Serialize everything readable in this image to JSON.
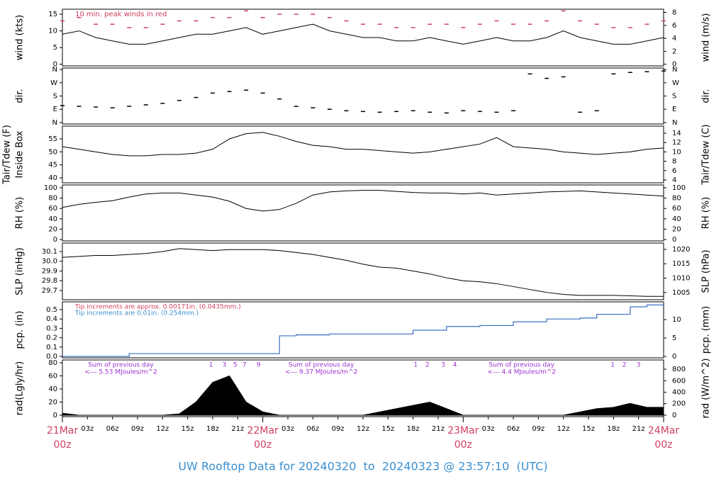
{
  "title": "UW Rooftop Data for 20240320  to  20240323 @ 23:57:10  (UTC)",
  "x": [
    0,
    2,
    4,
    6,
    8,
    10,
    12,
    14,
    16,
    18,
    20,
    22,
    24,
    26,
    28,
    30,
    32,
    34,
    36,
    38,
    40,
    42,
    44,
    46,
    48,
    50,
    52,
    54,
    56,
    58,
    60,
    62,
    64,
    66,
    68,
    70,
    72
  ],
  "xlim": [
    0,
    72
  ],
  "xticks": [
    {
      "value": 3,
      "label": "03z"
    },
    {
      "value": 6,
      "label": "06z"
    },
    {
      "value": 9,
      "label": "09z"
    },
    {
      "value": 12,
      "label": "12z"
    },
    {
      "value": 15,
      "label": "15z"
    },
    {
      "value": 18,
      "label": "18z"
    },
    {
      "value": 21,
      "label": "21z"
    },
    {
      "value": 27,
      "label": "03z"
    },
    {
      "value": 30,
      "label": "06z"
    },
    {
      "value": 33,
      "label": "09z"
    },
    {
      "value": 36,
      "label": "12z"
    },
    {
      "value": 39,
      "label": "15z"
    },
    {
      "value": 42,
      "label": "18z"
    },
    {
      "value": 45,
      "label": "21z"
    },
    {
      "value": 51,
      "label": "03z"
    },
    {
      "value": 54,
      "label": "06z"
    },
    {
      "value": 57,
      "label": "09z"
    },
    {
      "value": 60,
      "label": "12z"
    },
    {
      "value": 63,
      "label": "15z"
    },
    {
      "value": 66,
      "label": "18z"
    },
    {
      "value": 69,
      "label": "21z"
    }
  ],
  "day_ticks": [
    {
      "value": 0,
      "label": "21Mar"
    },
    {
      "value": 24,
      "label": "22Mar"
    },
    {
      "value": 48,
      "label": "23Mar"
    },
    {
      "value": 72,
      "label": "24Mar"
    }
  ],
  "day_hour_label": "00z",
  "chart_data": [
    {
      "type": "line",
      "ylabel": "wind (kts)",
      "y2label": "wind (m/s)",
      "annotation": "10 min. peak winds in red",
      "annotation_color": "#d04060",
      "ylim": [
        -0.5,
        16.5
      ],
      "yticks": [
        0,
        5,
        10,
        15
      ],
      "y2lim": [
        -0.26,
        8.49
      ],
      "y2ticks": [
        0,
        2,
        4,
        6,
        8
      ],
      "series": [
        {
          "color": "#000000",
          "values": [
            9,
            10,
            8,
            7,
            6,
            6,
            7,
            8,
            9,
            9,
            10,
            11,
            9,
            10,
            11,
            12,
            10,
            9,
            8,
            8,
            7,
            7,
            8,
            7,
            6,
            7,
            8,
            7,
            7,
            8,
            10,
            8,
            7,
            6,
            6,
            7,
            8
          ]
        },
        {
          "color": "#d04060",
          "style": "dash",
          "values": [
            13,
            14,
            12,
            12,
            11,
            11,
            12,
            13,
            13,
            14,
            14,
            16,
            14,
            15,
            15,
            15,
            14,
            13,
            12,
            12,
            11,
            11,
            12,
            12,
            11,
            12,
            13,
            12,
            12,
            13,
            16,
            13,
            12,
            11,
            11,
            12,
            13
          ]
        }
      ]
    },
    {
      "type": "scatter",
      "ylabel": "dir.",
      "y2label": "dir.",
      "ylim": [
        -10,
        370
      ],
      "yticks": [
        {
          "value": 0,
          "label": "N"
        },
        {
          "value": 90,
          "label": "E"
        },
        {
          "value": 180,
          "label": "S"
        },
        {
          "value": 270,
          "label": "W"
        },
        {
          "value": 360,
          "label": "N"
        }
      ],
      "y2lim": [
        -10,
        370
      ],
      "y2ticks": [
        {
          "value": 0,
          "label": "N"
        },
        {
          "value": 90,
          "label": "E"
        },
        {
          "value": 180,
          "label": "S"
        },
        {
          "value": 270,
          "label": "W"
        },
        {
          "value": 360,
          "label": "N"
        }
      ],
      "series": [
        {
          "color": "#000000",
          "values": [
            115,
            110,
            105,
            100,
            110,
            120,
            130,
            150,
            170,
            200,
            210,
            220,
            200,
            160,
            110,
            100,
            90,
            80,
            75,
            70,
            75,
            80,
            70,
            65,
            80,
            75,
            70,
            80,
            330,
            300,
            310,
            70,
            80,
            330,
            340,
            345,
            350
          ]
        }
      ]
    },
    {
      "type": "line",
      "ylabel": "Tair/Tdew (F)",
      "ylabel2": "Inside Box",
      "y2label": "Tair/Tdew (C)",
      "ylim": [
        38.1,
        59.9
      ],
      "yticks": [
        40,
        45,
        50,
        55
      ],
      "y2lim": [
        3.39,
        15.5
      ],
      "y2ticks": [
        4,
        6,
        8,
        10,
        12,
        14
      ],
      "series": [
        {
          "color": "#000000",
          "values": [
            52,
            51,
            50,
            49,
            48.5,
            48.5,
            49,
            49,
            49.5,
            51,
            55,
            57,
            57.5,
            56,
            54,
            52.5,
            52,
            51,
            51,
            50.5,
            50,
            49.5,
            50,
            51,
            52,
            53,
            55.5,
            52,
            51.5,
            51,
            50,
            49.5,
            49,
            49.5,
            50,
            51,
            51.5
          ]
        }
      ]
    },
    {
      "type": "line",
      "ylabel": "RH (%)",
      "y2label": "RH (%)",
      "ylim": [
        -2.7,
        105.5
      ],
      "yticks": [
        0,
        20,
        40,
        60,
        80,
        100
      ],
      "y2lim": [
        -2.7,
        105.5
      ],
      "y2ticks": [
        0,
        20,
        40,
        60,
        80,
        100
      ],
      "series": [
        {
          "color": "#000000",
          "values": [
            62,
            68,
            72,
            75,
            82,
            88,
            90,
            90,
            86,
            82,
            74,
            60,
            55,
            58,
            70,
            86,
            92,
            94,
            95,
            95,
            93,
            91,
            90,
            90,
            88,
            90,
            86,
            88,
            90,
            92,
            93,
            94,
            92,
            90,
            88,
            86,
            84
          ]
        }
      ]
    },
    {
      "type": "line",
      "ylabel": "SLP (inHg)",
      "y2label": "SLP (hPa)",
      "ylim": [
        29.605,
        30.187
      ],
      "yticks": [
        29.7,
        29.8,
        29.9,
        {
          "value": 30.0,
          "label": "30.0"
        },
        30.1
      ],
      "y2lim": [
        1002.5,
        1022.2
      ],
      "y2ticks": [
        1005,
        1010,
        1015,
        1020
      ],
      "series": [
        {
          "color": "#000000",
          "values": [
            30.04,
            30.05,
            30.06,
            30.06,
            30.07,
            30.08,
            30.1,
            30.13,
            30.12,
            30.11,
            30.12,
            30.12,
            30.12,
            30.11,
            30.09,
            30.07,
            30.04,
            30.01,
            29.97,
            29.94,
            29.93,
            29.9,
            29.87,
            29.83,
            29.8,
            29.79,
            29.77,
            29.74,
            29.71,
            29.68,
            29.66,
            29.65,
            29.65,
            29.65,
            29.645,
            29.64,
            29.64
          ]
        }
      ]
    },
    {
      "type": "step",
      "ylabel": "pcp. (in)",
      "y2label": "pcp. (mm)",
      "annotations": [
        {
          "text": "Tip increments are approx. 0.00171in. (0.0435mm.)",
          "color": "#d04060"
        },
        {
          "text": "Tip increments are 0.01in. (0.254mm.)",
          "color": "#3a8fd0"
        }
      ],
      "ylim": [
        -0.015,
        0.583
      ],
      "yticks": [
        {
          "value": 0,
          "label": "0.0"
        },
        0.1,
        0.2,
        0.3,
        0.4,
        0.5
      ],
      "y2lim": [
        -0.38,
        14.81
      ],
      "y2ticks": [
        0,
        5,
        10
      ],
      "series": [
        {
          "color": "#3a6fc4",
          "values": [
            0,
            0,
            0,
            0,
            0.03,
            0.03,
            0.03,
            0.03,
            0.03,
            0.03,
            0.03,
            0.03,
            0.03,
            0.22,
            0.23,
            0.23,
            0.24,
            0.24,
            0.24,
            0.24,
            0.24,
            0.28,
            0.28,
            0.32,
            0.32,
            0.33,
            0.33,
            0.37,
            0.37,
            0.4,
            0.4,
            0.41,
            0.45,
            0.45,
            0.53,
            0.55,
            0.55
          ]
        }
      ]
    },
    {
      "type": "area",
      "ylabel": "rad(Lgly/hr)",
      "y2label": "rad (W/m^2)",
      "ylim": [
        -2.2,
        84.3
      ],
      "yticks": [
        0,
        20,
        40,
        60,
        80
      ],
      "y2lim": [
        -25,
        961
      ],
      "y2ticks": [
        0,
        200,
        400,
        600,
        800
      ],
      "daily_sums": [
        {
          "label": "Sum of previous day",
          "value_label": "<--- 5.53 MJoules/m^2"
        },
        {
          "label": "Sum of previous day",
          "value_label": "<--- 9.37 MJoules/m^2"
        },
        {
          "label": "Sum of previous day",
          "value_label": "<--- 4.4 MJoules/m^2"
        }
      ],
      "hour_marks": [
        "1",
        "3",
        "5",
        "7",
        "9",
        "1",
        "2",
        "3",
        "4",
        "1",
        "2",
        "3"
      ],
      "series": [
        {
          "color": "#000000",
          "values": [
            3,
            0,
            0,
            0,
            0,
            0,
            0,
            2,
            20,
            50,
            60,
            20,
            5,
            0,
            0,
            0,
            0,
            0,
            0,
            5,
            10,
            15,
            20,
            10,
            0,
            0,
            0,
            0,
            0,
            0,
            0,
            5,
            10,
            12,
            18,
            12,
            12
          ]
        }
      ]
    }
  ]
}
